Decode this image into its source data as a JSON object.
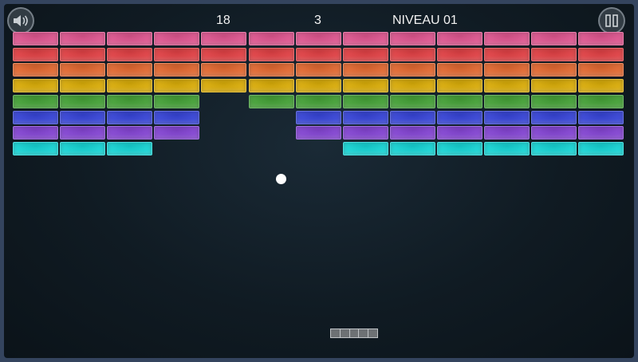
{
  "hud": {
    "score": "18",
    "lives": "3",
    "level": "NIVEAU 01"
  },
  "buttons": {
    "sound_icon": "speaker-icon",
    "pause_icon": "pause-icon"
  },
  "bricks": {
    "columns": 13,
    "rows": [
      {
        "color": "#e85a96",
        "present": [
          1,
          1,
          1,
          1,
          1,
          1,
          1,
          1,
          1,
          1,
          1,
          1,
          1
        ]
      },
      {
        "color": "#ea4448",
        "present": [
          1,
          1,
          1,
          1,
          1,
          1,
          1,
          1,
          1,
          1,
          1,
          1,
          1
        ]
      },
      {
        "color": "#ec6e34",
        "present": [
          1,
          1,
          1,
          1,
          1,
          1,
          1,
          1,
          1,
          1,
          1,
          1,
          1
        ]
      },
      {
        "color": "#e3b40a",
        "present": [
          1,
          1,
          1,
          1,
          1,
          1,
          1,
          1,
          1,
          1,
          1,
          1,
          1
        ]
      },
      {
        "color": "#48a83a",
        "present": [
          1,
          1,
          1,
          1,
          0,
          1,
          1,
          1,
          1,
          1,
          1,
          1,
          1
        ]
      },
      {
        "color": "#3a48e0",
        "present": [
          1,
          1,
          1,
          1,
          0,
          0,
          1,
          1,
          1,
          1,
          1,
          1,
          1
        ]
      },
      {
        "color": "#8a48dc",
        "present": [
          1,
          1,
          1,
          1,
          0,
          0,
          1,
          1,
          1,
          1,
          1,
          1,
          1
        ]
      },
      {
        "color": "#18dede",
        "present": [
          1,
          1,
          1,
          0,
          0,
          0,
          0,
          1,
          1,
          1,
          1,
          1,
          1
        ]
      }
    ]
  },
  "ball": {
    "color": "#ffffff"
  },
  "paddle": {
    "segments": 5
  }
}
